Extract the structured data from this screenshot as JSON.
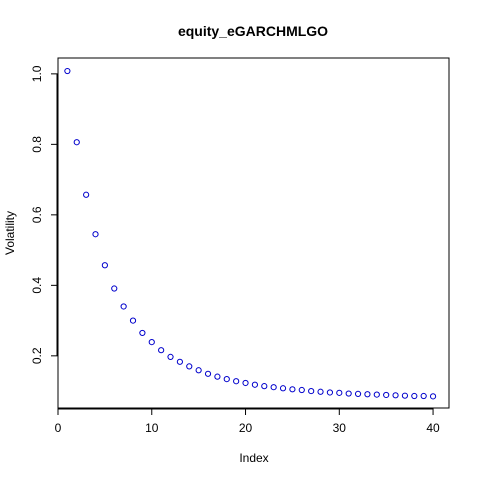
{
  "chart_data": {
    "type": "scatter",
    "title": "equity_eGARCHMLGO",
    "xlabel": "Index",
    "ylabel": "Volatility",
    "xlim": [
      0,
      41.7
    ],
    "ylim": [
      0.052,
      1.045
    ],
    "x_ticks": [
      0,
      10,
      20,
      30,
      40
    ],
    "y_ticks": [
      0.2,
      0.4,
      0.6,
      0.8,
      1.0
    ],
    "x_tick_labels": [
      "0",
      "10",
      "20",
      "30",
      "40"
    ],
    "y_tick_labels": [
      "0.2",
      "0.4",
      "0.6",
      "0.8",
      "1.0"
    ],
    "grid": false,
    "series": [
      {
        "color": "#0000cc",
        "x": [
          1,
          2,
          3,
          4,
          5,
          6,
          7,
          8,
          9,
          10,
          11,
          12,
          13,
          14,
          15,
          16,
          17,
          18,
          19,
          20,
          21,
          22,
          23,
          24,
          25,
          26,
          27,
          28,
          29,
          30,
          31,
          32,
          33,
          34,
          35,
          36,
          37,
          38,
          39,
          40
        ],
        "y": [
          1.008,
          0.806,
          0.657,
          0.545,
          0.457,
          0.391,
          0.34,
          0.3,
          0.265,
          0.239,
          0.216,
          0.197,
          0.183,
          0.17,
          0.159,
          0.149,
          0.141,
          0.134,
          0.128,
          0.123,
          0.118,
          0.114,
          0.111,
          0.108,
          0.105,
          0.103,
          0.1,
          0.098,
          0.096,
          0.095,
          0.093,
          0.092,
          0.091,
          0.09,
          0.089,
          0.088,
          0.087,
          0.086,
          0.086,
          0.085
        ]
      }
    ]
  }
}
